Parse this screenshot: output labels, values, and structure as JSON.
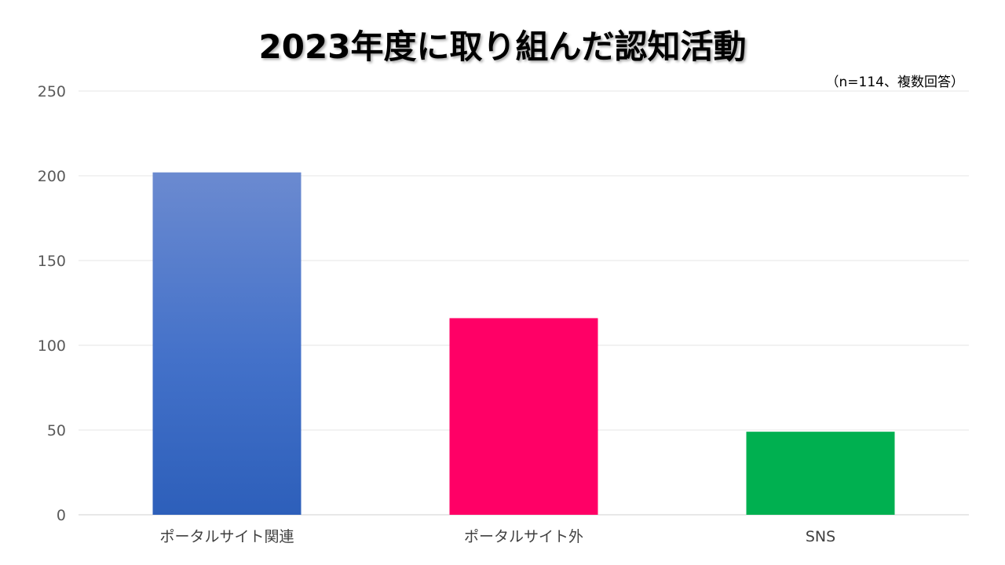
{
  "chart_data": {
    "type": "bar",
    "title": "2023年度に取り組んだ認知活動",
    "note": "（n=114、複数回答）",
    "categories": [
      "ポータルサイト関連",
      "ポータルサイト外",
      "SNS"
    ],
    "values": [
      202,
      116,
      49
    ],
    "bar_colors": [
      "#4472c4",
      "#ff0066",
      "#00b050"
    ],
    "yticks": [
      "0",
      "50",
      "100",
      "150",
      "200",
      "250"
    ],
    "ylim": [
      0,
      250
    ],
    "grid": true,
    "xlabel": "",
    "ylabel": ""
  }
}
